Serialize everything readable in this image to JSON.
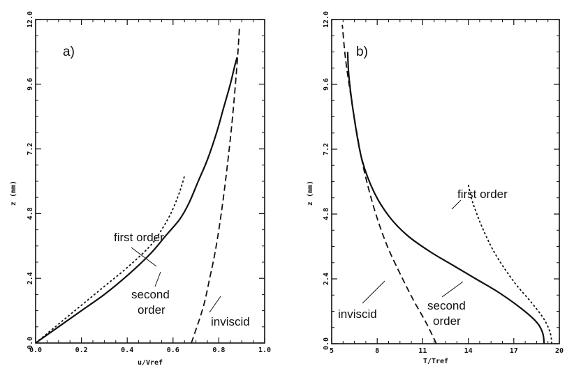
{
  "chart_data": [
    {
      "type": "line",
      "panel_label": "a)",
      "xlabel": "u/Vref",
      "ylabel": "z (mm)",
      "xlim": [
        0.0,
        1.0
      ],
      "ylim": [
        0.0,
        12.0
      ],
      "x_ticks": [
        {
          "value": 0.0,
          "label": "0.0"
        },
        {
          "value": 0.2,
          "label": "0.2"
        },
        {
          "value": 0.4,
          "label": "0.4"
        },
        {
          "value": 0.6,
          "label": "0.6"
        },
        {
          "value": 0.8,
          "label": "0.8"
        },
        {
          "value": 1.0,
          "label": "1.0"
        }
      ],
      "y_ticks": [
        {
          "value": 0.0,
          "label": "0.0"
        },
        {
          "value": 2.4,
          "label": "2.4"
        },
        {
          "value": 4.8,
          "label": "4.8"
        },
        {
          "value": 7.2,
          "label": "7.2"
        },
        {
          "value": 9.6,
          "label": "9.6"
        },
        {
          "value": 12.0,
          "label": "12.0"
        }
      ],
      "series": [
        {
          "name": "second order",
          "style": "solid",
          "x": [
            0.0,
            0.1,
            0.2,
            0.3,
            0.4,
            0.5,
            0.57,
            0.63,
            0.67,
            0.71,
            0.75,
            0.79,
            0.82,
            0.85,
            0.87,
            0.88
          ],
          "y": [
            0.0,
            0.6,
            1.2,
            1.8,
            2.5,
            3.3,
            4.0,
            4.6,
            5.2,
            6.0,
            6.8,
            7.8,
            8.7,
            9.6,
            10.3,
            10.6
          ]
        },
        {
          "name": "first order",
          "style": "dotted",
          "x": [
            0.0,
            0.1,
            0.2,
            0.3,
            0.4,
            0.5,
            0.55,
            0.59,
            0.62,
            0.64,
            0.65
          ],
          "y": [
            0.0,
            0.7,
            1.4,
            2.1,
            2.8,
            3.6,
            4.2,
            4.8,
            5.4,
            5.9,
            6.2
          ]
        },
        {
          "name": "inviscid",
          "style": "dashed",
          "x": [
            0.68,
            0.7,
            0.72,
            0.74,
            0.76,
            0.78,
            0.8,
            0.82,
            0.84,
            0.86,
            0.88,
            0.89
          ],
          "y": [
            0.0,
            0.5,
            1.0,
            1.6,
            2.4,
            3.2,
            4.2,
            5.4,
            6.8,
            8.4,
            10.4,
            11.7
          ]
        }
      ],
      "annotations": [
        {
          "text": "first order",
          "series": "first order"
        },
        {
          "text": "second",
          "series": "second order"
        },
        {
          "text": "order",
          "series": "second order"
        },
        {
          "text": "inviscid",
          "series": "inviscid"
        }
      ]
    },
    {
      "type": "line",
      "panel_label": "b)",
      "xlabel": "T/Tref",
      "ylabel": "z (mm)",
      "xlim": [
        5.0,
        20.0
      ],
      "ylim": [
        0.0,
        12.0
      ],
      "x_ticks": [
        {
          "value": 5.0,
          "label": "5"
        },
        {
          "value": 8.0,
          "label": "8"
        },
        {
          "value": 11.0,
          "label": "11"
        },
        {
          "value": 14.0,
          "label": "14"
        },
        {
          "value": 17.0,
          "label": "17"
        },
        {
          "value": 20.0,
          "label": "20"
        }
      ],
      "y_ticks": [
        {
          "value": 0.0,
          "label": "0.0"
        },
        {
          "value": 2.4,
          "label": "2.4"
        },
        {
          "value": 4.8,
          "label": "4.8"
        },
        {
          "value": 7.2,
          "label": "7.2"
        },
        {
          "value": 9.6,
          "label": "9.6"
        },
        {
          "value": 12.0,
          "label": "12.0"
        }
      ],
      "series": [
        {
          "name": "second order",
          "style": "solid",
          "x": [
            19.0,
            18.9,
            18.5,
            17.5,
            16.0,
            14.5,
            13.0,
            11.5,
            10.0,
            8.8,
            7.8,
            7.0,
            6.5,
            6.15,
            6.05
          ],
          "y": [
            0.0,
            0.4,
            0.8,
            1.3,
            1.9,
            2.4,
            2.9,
            3.4,
            4.0,
            4.7,
            5.6,
            6.8,
            8.3,
            9.8,
            10.8
          ]
        },
        {
          "name": "first order",
          "style": "dotted",
          "x": [
            19.5,
            19.4,
            19.0,
            18.2,
            17.0,
            15.8,
            15.0,
            14.5,
            14.2,
            14.0
          ],
          "y": [
            0.0,
            0.4,
            0.9,
            1.5,
            2.3,
            3.3,
            4.2,
            4.9,
            5.4,
            5.9
          ]
        },
        {
          "name": "inviscid",
          "style": "dashed",
          "x": [
            11.9,
            11.2,
            10.4,
            9.5,
            8.6,
            7.8,
            7.1,
            6.6,
            6.2,
            5.9,
            5.7
          ],
          "y": [
            0.0,
            0.8,
            1.6,
            2.6,
            3.7,
            5.0,
            6.5,
            8.0,
            9.4,
            10.6,
            11.8
          ]
        }
      ],
      "annotations": [
        {
          "text": "first order",
          "series": "first order"
        },
        {
          "text": "second",
          "series": "second order"
        },
        {
          "text": "order",
          "series": "second order"
        },
        {
          "text": "inviscid",
          "series": "inviscid"
        }
      ]
    }
  ]
}
